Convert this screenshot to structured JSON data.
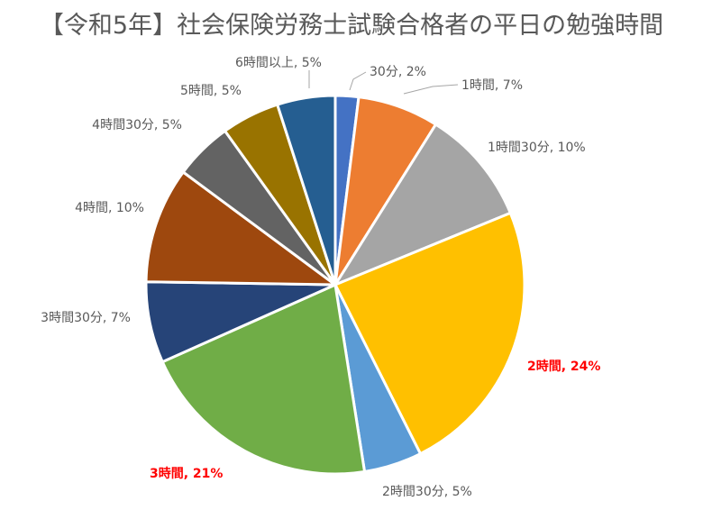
{
  "chart_data": {
    "type": "pie",
    "title": "【令和5年】社会保険労務士試験合格者の平日の勉強時間",
    "start_angle_deg": 0,
    "direction": "clockwise",
    "slices": [
      {
        "label": "30分, 2%",
        "category": "30分",
        "value": 2,
        "color": "#4472c4",
        "label_color": "#595959",
        "bold": false
      },
      {
        "label": "1時間, 7%",
        "category": "1時間",
        "value": 7,
        "color": "#ed7d31",
        "label_color": "#595959",
        "bold": false
      },
      {
        "label": "1時間30分, 10%",
        "category": "1時間30分",
        "value": 10,
        "color": "#a5a5a5",
        "label_color": "#595959",
        "bold": false
      },
      {
        "label": "2時間, 24%",
        "category": "2時間",
        "value": 24,
        "color": "#ffc000",
        "label_color": "#ff0000",
        "bold": true
      },
      {
        "label": "2時間30分, 5%",
        "category": "2時間30分",
        "value": 5,
        "color": "#5b9bd5",
        "label_color": "#595959",
        "bold": false
      },
      {
        "label": "3時間, 21%",
        "category": "3時間",
        "value": 21,
        "color": "#70ad47",
        "label_color": "#ff0000",
        "bold": true
      },
      {
        "label": "3時間30分, 7%",
        "category": "3時間30分",
        "value": 7,
        "color": "#264478",
        "label_color": "#595959",
        "bold": false
      },
      {
        "label": "4時間, 10%",
        "category": "4時間",
        "value": 10,
        "color": "#9e480e",
        "label_color": "#595959",
        "bold": false
      },
      {
        "label": "4時間30分, 5%",
        "category": "4時間30分",
        "value": 5,
        "color": "#636363",
        "label_color": "#595959",
        "bold": false
      },
      {
        "label": "5時間, 5%",
        "category": "5時間",
        "value": 5,
        "color": "#997300",
        "label_color": "#595959",
        "bold": false
      },
      {
        "label": "6時間以上, 5%",
        "category": "6時間以上",
        "value": 5,
        "color": "#255e91",
        "label_color": "#595959",
        "bold": false
      }
    ]
  }
}
